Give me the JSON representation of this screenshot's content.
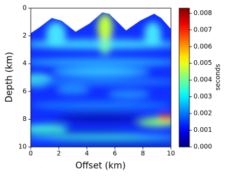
{
  "chart_data": {
    "type": "heatmap",
    "xlabel": "Offset (km)",
    "ylabel": "Depth (km)",
    "xlim": [
      0,
      10
    ],
    "xticks": [
      0,
      2,
      4,
      6,
      8,
      10
    ],
    "ylim": [
      0,
      10
    ],
    "yticks": [
      0,
      2,
      4,
      6,
      8,
      10
    ],
    "y_inverted": true,
    "colormap": "jet",
    "colorbar_label": "seconds",
    "clim": [
      0,
      0.0083
    ],
    "cticks": [
      {
        "value": 0,
        "label": "0.000"
      },
      {
        "value": 0.001,
        "label": "0.001"
      },
      {
        "value": 0.002,
        "label": "0.002"
      },
      {
        "value": 0.003,
        "label": "0.003"
      },
      {
        "value": 0.004,
        "label": "0.004"
      },
      {
        "value": 0.005,
        "label": "0.005"
      },
      {
        "value": 0.006,
        "label": "0.006"
      },
      {
        "value": 0.007,
        "label": "0.007"
      },
      {
        "value": 0.008,
        "label": "0.008"
      }
    ]
  }
}
